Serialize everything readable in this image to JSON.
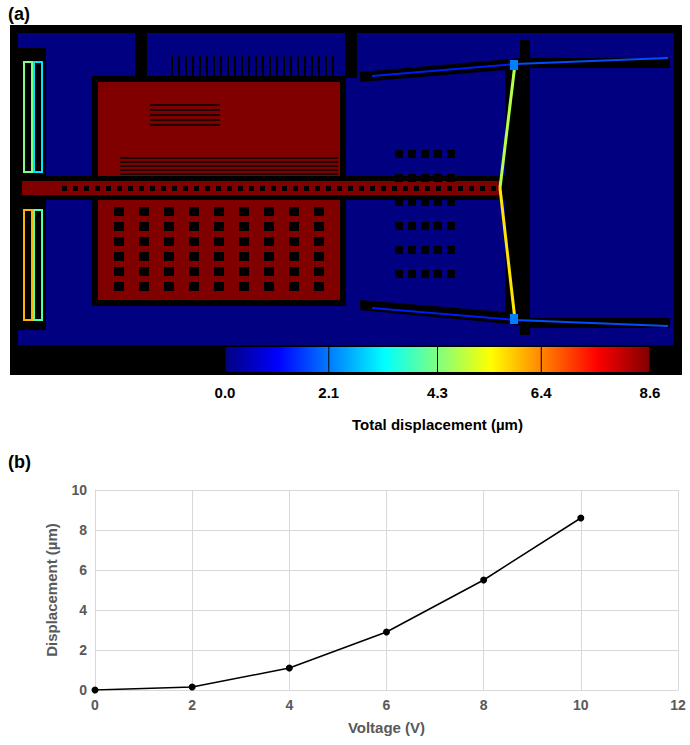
{
  "panel_a": {
    "label": "(a)",
    "colorbar": {
      "title": "Total displacement (µm)",
      "lim": [
        0,
        8.6
      ],
      "ticks": [
        {
          "value": 0,
          "label": "0.0"
        },
        2.1,
        4.3,
        6.4,
        8.6
      ]
    }
  },
  "chart_data": {
    "label": "(b)",
    "type": "line",
    "x_label": "Voltage (V)",
    "y_label": "Displacement (µm)",
    "x": [
      0,
      2,
      4,
      6,
      8,
      10
    ],
    "values": [
      0,
      0.15,
      1.1,
      2.9,
      5.5,
      8.6
    ],
    "color": "#000000",
    "marker": "circle",
    "xlim": [
      0,
      12
    ],
    "xticks": [
      0,
      2,
      4,
      6,
      8,
      10,
      12
    ],
    "ylim": [
      0,
      10
    ],
    "yticks": [
      0,
      2,
      4,
      6,
      8,
      10
    ],
    "grid": true
  }
}
